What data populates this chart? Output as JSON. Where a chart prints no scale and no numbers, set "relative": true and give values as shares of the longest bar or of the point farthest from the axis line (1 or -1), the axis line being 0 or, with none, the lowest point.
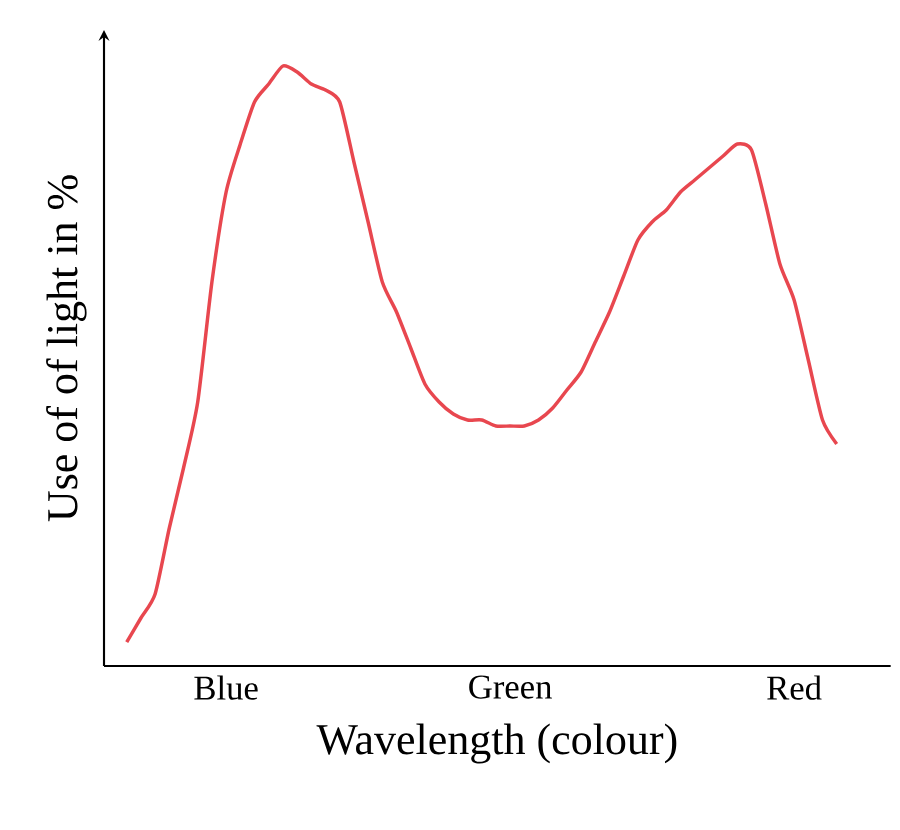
{
  "chart_data": {
    "type": "line",
    "relative": true,
    "xlabel": "Wavelength (colour)",
    "ylabel": "Use of of light in %",
    "color": "#e8474f",
    "categories": [
      null,
      null,
      null,
      null,
      null,
      null,
      null,
      "Blue",
      null,
      null,
      null,
      null,
      null,
      null,
      null,
      null,
      null,
      null,
      null,
      null,
      null,
      null,
      null,
      null,
      null,
      null,
      null,
      "Green",
      null,
      null,
      null,
      null,
      null,
      null,
      null,
      null,
      null,
      null,
      null,
      null,
      null,
      null,
      null,
      null,
      null,
      null,
      null,
      "Red",
      null,
      null,
      null
    ],
    "values": [
      0.04,
      0.08,
      0.12,
      0.23,
      0.33,
      0.44,
      0.64,
      0.79,
      0.87,
      0.94,
      0.97,
      1.0,
      0.99,
      0.97,
      0.96,
      0.94,
      0.84,
      0.74,
      0.64,
      0.59,
      0.53,
      0.47,
      0.44,
      0.42,
      0.41,
      0.41,
      0.4,
      0.4,
      0.4,
      0.41,
      0.43,
      0.46,
      0.49,
      0.54,
      0.59,
      0.65,
      0.71,
      0.74,
      0.76,
      0.79,
      0.81,
      0.83,
      0.85,
      0.87,
      0.86,
      0.77,
      0.67,
      0.61,
      0.51,
      0.41,
      0.37
    ],
    "marker": "none"
  }
}
